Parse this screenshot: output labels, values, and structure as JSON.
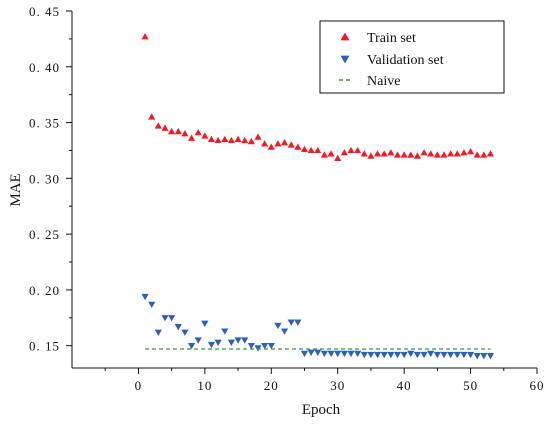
{
  "chart_data": {
    "type": "scatter",
    "xlabel": "Epoch",
    "ylabel": "MAE",
    "xlim": [
      -10,
      60
    ],
    "ylim": [
      0.13,
      0.45
    ],
    "xticks": [
      0,
      10,
      20,
      30,
      40,
      50,
      60
    ],
    "yticks": [
      0.15,
      0.2,
      0.25,
      0.3,
      0.35,
      0.4,
      0.45
    ],
    "ytick_labels": [
      "0. 15",
      "0. 20",
      "0. 25",
      "0. 30",
      "0. 35",
      "0. 40",
      "0. 45"
    ],
    "legend_position": "top-right",
    "grid": false,
    "series": [
      {
        "name": "Train set",
        "marker": "triangle-up",
        "color": "#ee1c25",
        "x": [
          1,
          2,
          3,
          4,
          5,
          6,
          7,
          8,
          9,
          10,
          11,
          12,
          13,
          14,
          15,
          16,
          17,
          18,
          19,
          20,
          21,
          22,
          23,
          24,
          25,
          26,
          27,
          28,
          29,
          30,
          31,
          32,
          33,
          34,
          35,
          36,
          37,
          38,
          39,
          40,
          41,
          42,
          43,
          44,
          45,
          46,
          47,
          48,
          49,
          50,
          51,
          52,
          53
        ],
        "values": [
          0.427,
          0.355,
          0.347,
          0.345,
          0.342,
          0.342,
          0.34,
          0.336,
          0.341,
          0.338,
          0.335,
          0.334,
          0.335,
          0.334,
          0.335,
          0.334,
          0.333,
          0.337,
          0.331,
          0.328,
          0.331,
          0.332,
          0.33,
          0.328,
          0.326,
          0.325,
          0.325,
          0.321,
          0.322,
          0.318,
          0.323,
          0.325,
          0.325,
          0.322,
          0.32,
          0.322,
          0.322,
          0.323,
          0.321,
          0.321,
          0.321,
          0.32,
          0.323,
          0.322,
          0.321,
          0.321,
          0.322,
          0.322,
          0.323,
          0.324,
          0.321,
          0.321,
          0.322
        ]
      },
      {
        "name": "Validation set",
        "marker": "triangle-down",
        "color": "#2e5fbd",
        "x": [
          1,
          2,
          3,
          4,
          5,
          6,
          7,
          8,
          9,
          10,
          11,
          12,
          13,
          14,
          15,
          16,
          17,
          18,
          19,
          20,
          21,
          22,
          23,
          24,
          25,
          26,
          27,
          28,
          29,
          30,
          31,
          32,
          33,
          34,
          35,
          36,
          37,
          38,
          39,
          40,
          41,
          42,
          43,
          44,
          45,
          46,
          47,
          48,
          49,
          50,
          51,
          52,
          53
        ],
        "values": [
          0.194,
          0.187,
          0.162,
          0.175,
          0.175,
          0.167,
          0.162,
          0.15,
          0.155,
          0.17,
          0.151,
          0.153,
          0.163,
          0.153,
          0.155,
          0.155,
          0.15,
          0.148,
          0.15,
          0.15,
          0.168,
          0.163,
          0.171,
          0.171,
          0.143,
          0.144,
          0.144,
          0.143,
          0.143,
          0.143,
          0.143,
          0.143,
          0.143,
          0.142,
          0.142,
          0.142,
          0.142,
          0.142,
          0.142,
          0.142,
          0.143,
          0.142,
          0.142,
          0.143,
          0.142,
          0.142,
          0.142,
          0.142,
          0.142,
          0.142,
          0.141,
          0.141,
          0.141
        ]
      },
      {
        "name": "Naive",
        "marker": "dashed-line",
        "color": "#2a9d3a",
        "x": [
          1,
          53
        ],
        "values": [
          0.147,
          0.147
        ]
      }
    ]
  }
}
